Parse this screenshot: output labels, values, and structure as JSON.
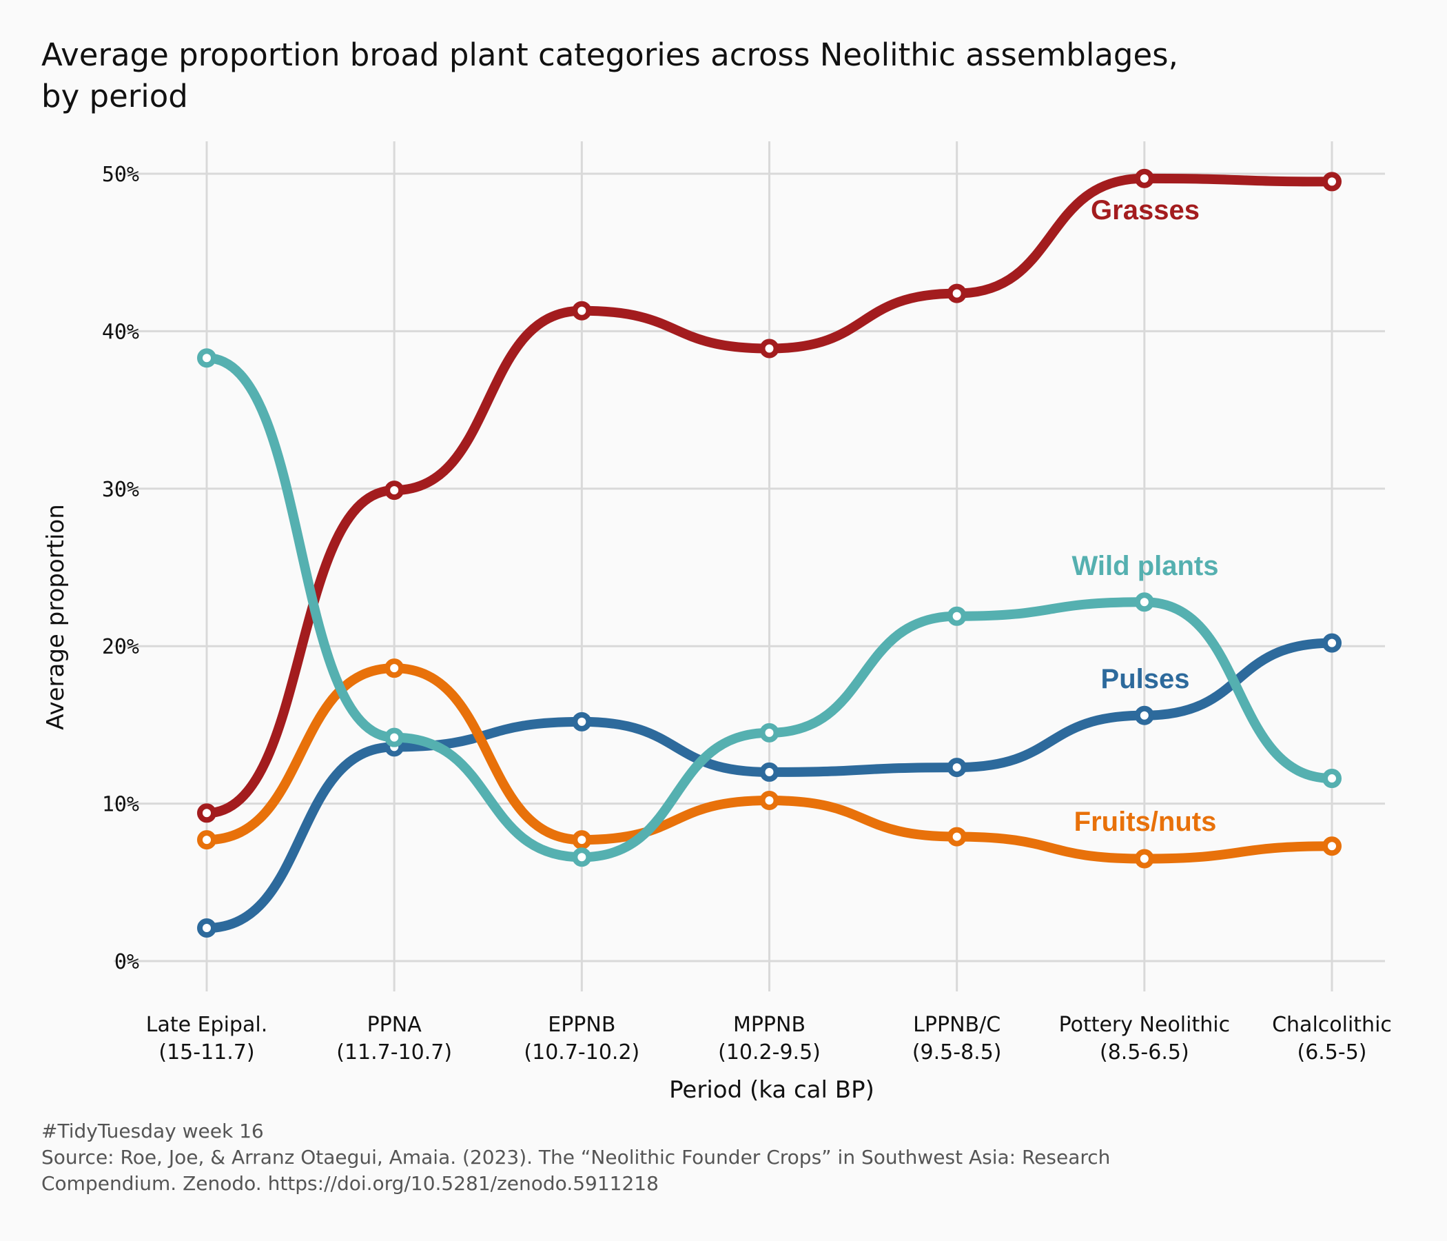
{
  "chart_data": {
    "type": "line",
    "title_lines": [
      "Average proportion broad plant categories across Neolithic assemblages,",
      "by period"
    ],
    "xlabel": "Period (ka cal BP)",
    "ylabel": "Average proportion",
    "categories": [
      [
        "Late Epipal.",
        "(15-11.7)"
      ],
      [
        "PPNA",
        "(11.7-10.7)"
      ],
      [
        "EPPNB",
        "(10.7-10.2)"
      ],
      [
        "MPPNB",
        "(10.2-9.5)"
      ],
      [
        "LPPNB/C",
        "(9.5-8.5)"
      ],
      [
        "Pottery Neolithic",
        "(8.5-6.5)"
      ],
      [
        "Chalcolithic",
        "(6.5-5)"
      ]
    ],
    "ylim": [
      0,
      0.5
    ],
    "yticks": [
      0,
      0.1,
      0.2,
      0.3,
      0.4,
      0.5
    ],
    "ytick_labels": [
      "0%",
      "10%",
      "20%",
      "30%",
      "40%",
      "50%"
    ],
    "grid": true,
    "series": [
      {
        "name": "Grasses",
        "color": "#a31c1e",
        "values": [
          0.094,
          0.299,
          0.413,
          0.389,
          0.424,
          0.497,
          0.495
        ]
      },
      {
        "name": "Wild plants",
        "color": "#55b0b0",
        "values": [
          0.383,
          0.142,
          0.066,
          0.145,
          0.219,
          0.228,
          0.116
        ]
      },
      {
        "name": "Pulses",
        "color": "#2d6a9c",
        "values": [
          0.021,
          0.136,
          0.152,
          0.12,
          0.123,
          0.156,
          0.202
        ]
      },
      {
        "name": "Fruits/nuts",
        "color": "#e8710a",
        "values": [
          0.077,
          0.186,
          0.077,
          0.102,
          0.079,
          0.065,
          0.073
        ]
      }
    ],
    "caption_lines": [
      "#TidyTuesday week 16",
      "Source: Roe, Joe, & Arranz Otaegui, Amaia. (2023). The “Neolithic Founder Crops” in Southwest Asia: Research",
      "Compendium. Zenodo. https://doi.org/10.5281/zenodo.5911218"
    ]
  }
}
